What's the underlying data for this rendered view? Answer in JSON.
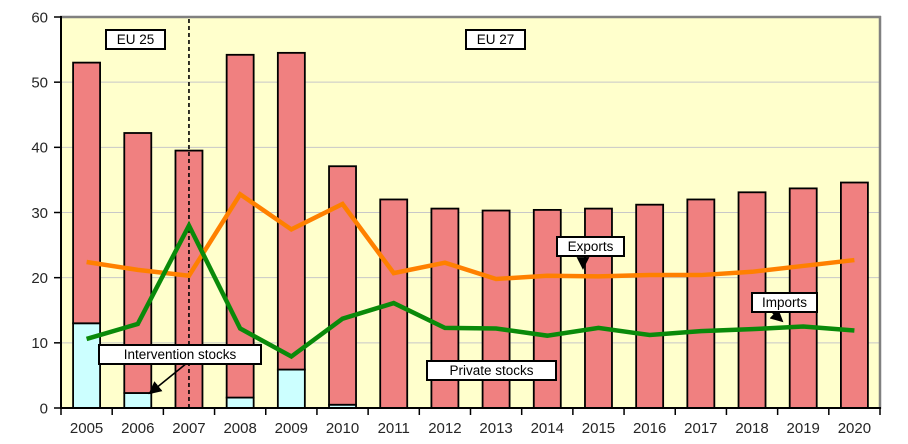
{
  "chart_data": {
    "type": "bar",
    "subtype": "stacked-bar-with-lines",
    "title": "",
    "xlabel": "",
    "ylabel": "",
    "categories": [
      "2005",
      "2006",
      "2007",
      "2008",
      "2009",
      "2010",
      "2011",
      "2012",
      "2013",
      "2014",
      "2015",
      "2016",
      "2017",
      "2018",
      "2019",
      "2020"
    ],
    "series": [
      {
        "name": "Intervention stocks",
        "render": "bar",
        "stack": "stocks",
        "color": "#CCFFFF",
        "values": [
          13.0,
          2.3,
          0,
          1.6,
          5.9,
          0.5,
          0,
          0,
          0,
          0,
          0,
          0,
          0,
          0,
          0,
          0
        ]
      },
      {
        "name": "Private stocks",
        "render": "bar",
        "stack": "stocks",
        "color": "#F08080",
        "values": [
          40.0,
          39.9,
          39.5,
          52.6,
          48.6,
          36.6,
          32.0,
          30.6,
          30.3,
          30.4,
          30.6,
          31.2,
          32.0,
          33.1,
          33.7,
          34.6
        ]
      },
      {
        "name": "Exports",
        "render": "line",
        "color": "#FF8000",
        "values": [
          22.4,
          21.2,
          20.3,
          32.8,
          27.4,
          31.3,
          20.7,
          22.3,
          19.8,
          20.3,
          20.2,
          20.4,
          20.4,
          20.9,
          21.8,
          22.7
        ]
      },
      {
        "name": "Imports",
        "render": "line",
        "color": "#0A8A0A",
        "values": [
          10.6,
          12.9,
          28.0,
          12.2,
          7.9,
          13.7,
          16.1,
          12.3,
          12.2,
          11.1,
          12.3,
          11.2,
          11.8,
          12.1,
          12.5,
          11.9
        ]
      }
    ],
    "ylim": [
      0,
      60
    ],
    "yticks": [
      0,
      10,
      20,
      30,
      40,
      50,
      60
    ],
    "grid": "horizontal",
    "legend_position": "none",
    "plot_background": "#FFFFCC",
    "gridline_color": "#C8C8C8",
    "border_color": "#808080",
    "divider": {
      "category": "2007",
      "style": "dashed"
    },
    "labels": {
      "eu25": "EU 25",
      "eu27": "EU 27",
      "intervention_stocks": "Intervention stocks",
      "private_stocks": "Private stocks",
      "exports": "Exports",
      "imports": "Imports"
    }
  }
}
